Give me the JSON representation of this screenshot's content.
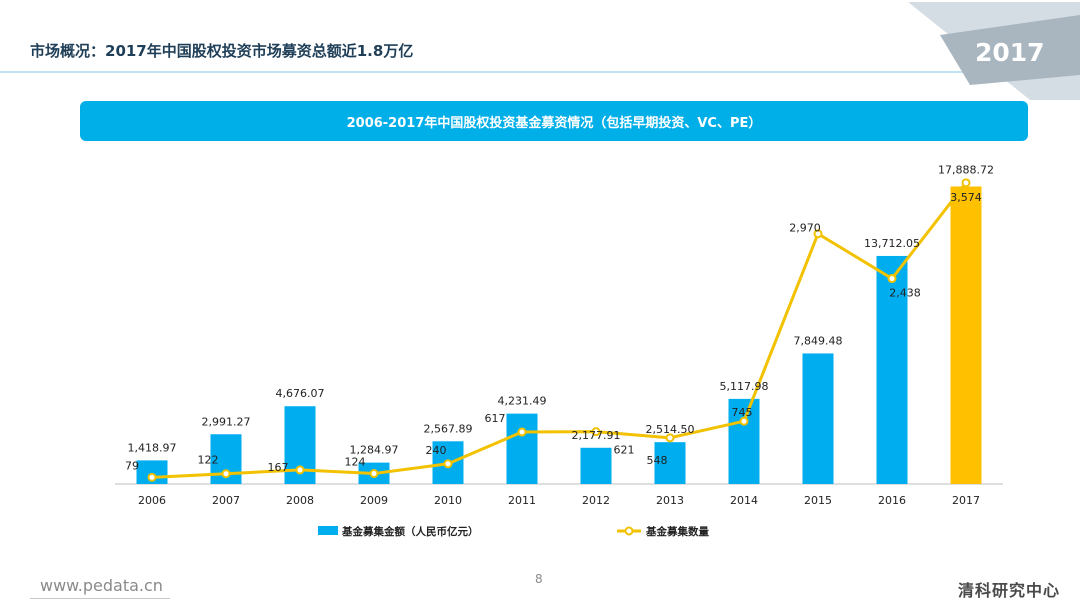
{
  "header": {
    "title": "市场概况：2017年中国股权投资市场募资总额近1.8万亿",
    "year_badge": "2017"
  },
  "banner": {
    "text": "2006-2017年中国股权投资基金募资情况（包括早期投资、VC、PE）"
  },
  "chart_data": {
    "type": "bar+line",
    "title": "2006-2017年中国股权投资基金募资情况（包括早期投资、VC、PE）",
    "categories": [
      "2006",
      "2007",
      "2008",
      "2009",
      "2010",
      "2011",
      "2012",
      "2013",
      "2014",
      "2015",
      "2016",
      "2017"
    ],
    "series": [
      {
        "name": "基金募集金额（人民币亿元）",
        "kind": "bar",
        "axis": "left",
        "values": [
          1418.97,
          2991.27,
          4676.07,
          1284.97,
          2567.89,
          4231.49,
          2177.91,
          2514.5,
          5117.98,
          7849.48,
          13712.05,
          17888.72
        ],
        "labels": [
          "1,418.97",
          "2,991.27",
          "4,676.07",
          "1,284.97",
          "2,567.89",
          "4,231.49",
          "2,177.91",
          "2,514.50",
          "5,117.98",
          "7,849.48",
          "13,712.05",
          "17,888.72"
        ]
      },
      {
        "name": "基金募集数量",
        "kind": "line",
        "axis": "right",
        "values": [
          79,
          122,
          167,
          124,
          240,
          617,
          621,
          548,
          745,
          2970,
          2438,
          3574
        ],
        "labels": [
          "79",
          "122",
          "167",
          "124",
          "240",
          "617",
          "621",
          "548",
          "745",
          "2,970",
          "2,438",
          "3,574"
        ]
      }
    ],
    "highlight_category": "2017",
    "ylim_left": [
      0,
      19000
    ],
    "ylim_right": [
      0,
      3750
    ],
    "grid": false,
    "legend_position": "bottom"
  },
  "colors": {
    "bar": "#00aeef",
    "bar_highlight": "#ffc000",
    "line": "#f2c200",
    "banner": "#00aee8",
    "title": "#1f3e57"
  },
  "footer": {
    "url": "www.pedata.cn",
    "page_number": "8",
    "brand": "清科研究中心"
  }
}
